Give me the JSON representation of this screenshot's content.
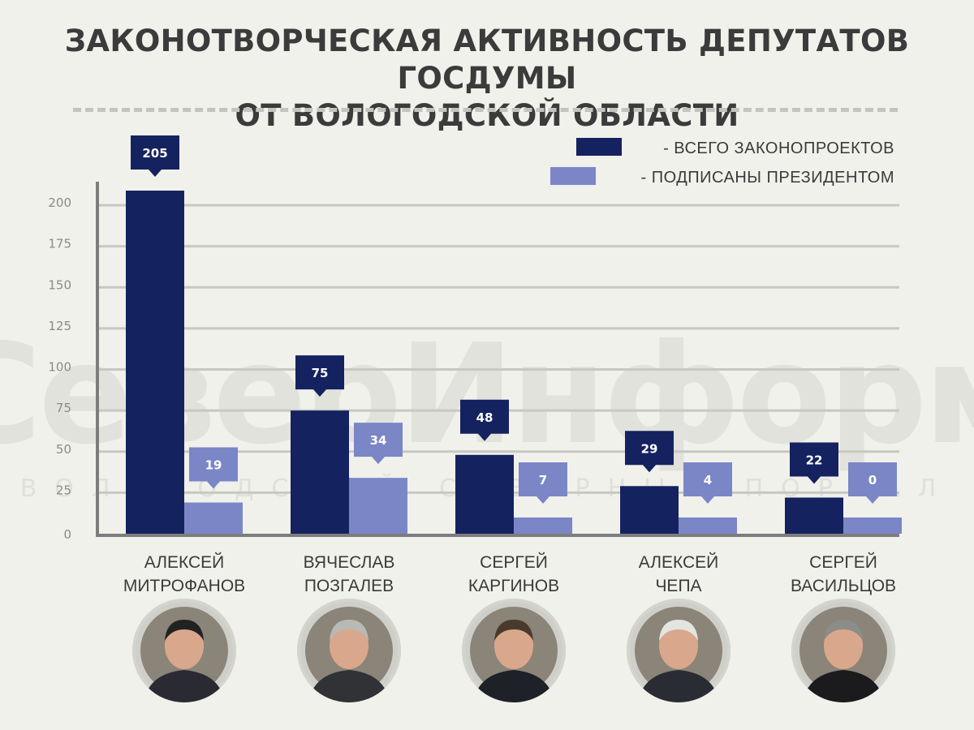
{
  "title_line1": "ЗАКОНОТВОРЧЕСКАЯ АКТИВНОСТЬ ДЕПУТАТОВ ГОСДУМЫ",
  "title_line2": "ОТ ВОЛОГОДСКОЙ ОБЛАСТИ",
  "watermark": {
    "main": "СеверИнформ",
    "sub": "ВОЛОГОДСКИЙ СЕВЕРНЫЙ ПОРТАЛ"
  },
  "colors": {
    "total": "#152260",
    "signed": "#7b86c7",
    "grid": "#c8c8c2",
    "axis": "#7d7d7d"
  },
  "chart_data": {
    "type": "bar",
    "categories": [
      "АЛЕКСЕЙ МИТРОФАНОВ",
      "ВЯЧЕСЛАВ ПОЗГАЛЕВ",
      "СЕРГЕЙ КАРГИНОВ",
      "АЛЕКСЕЙ ЧЕПА",
      "СЕРГЕЙ ВАСИЛЬЦОВ"
    ],
    "category_lines": [
      [
        "АЛЕКСЕЙ",
        "МИТРОФАНОВ"
      ],
      [
        "ВЯЧЕСЛАВ",
        "ПОЗГАЛЕВ"
      ],
      [
        "СЕРГЕЙ",
        "КАРГИНОВ"
      ],
      [
        "АЛЕКСЕЙ",
        "ЧЕПА"
      ],
      [
        "СЕРГЕЙ",
        "ВАСИЛЬЦОВ"
      ]
    ],
    "series": [
      {
        "name": "- ВСЕГО ЗАКОНОПРОЕКТОВ",
        "values": [
          205,
          75,
          48,
          29,
          22
        ]
      },
      {
        "name": "- ПОДПИСАНЫ ПРЕЗИДЕНТОМ",
        "values": [
          19,
          34,
          7,
          4,
          0
        ]
      }
    ],
    "display_values": [
      [
        205,
        75,
        48,
        29,
        22
      ],
      [
        19,
        34,
        7,
        4,
        0
      ]
    ],
    "ylim": [
      0,
      200
    ],
    "yticks": [
      0,
      25,
      50,
      75,
      100,
      125,
      150,
      175,
      200
    ],
    "grid": true,
    "legend_position": "top-right",
    "xlabel": "",
    "ylabel": ""
  },
  "portraits": [
    {
      "name": "portrait-mitrofanov-icon",
      "shirt": "#2a2a33",
      "hair": "#222222"
    },
    {
      "name": "portrait-pozgalev-icon",
      "shirt": "#303235",
      "hair": "#b9b9b5"
    },
    {
      "name": "portrait-karginov-icon",
      "shirt": "#1e2127",
      "hair": "#4a3a2c"
    },
    {
      "name": "portrait-chepa-icon",
      "shirt": "#2a2c33",
      "hair": "#e4e4e0"
    },
    {
      "name": "portrait-vasiltsov-icon",
      "shirt": "#1b1b1e",
      "hair": "#8c8c88"
    }
  ]
}
